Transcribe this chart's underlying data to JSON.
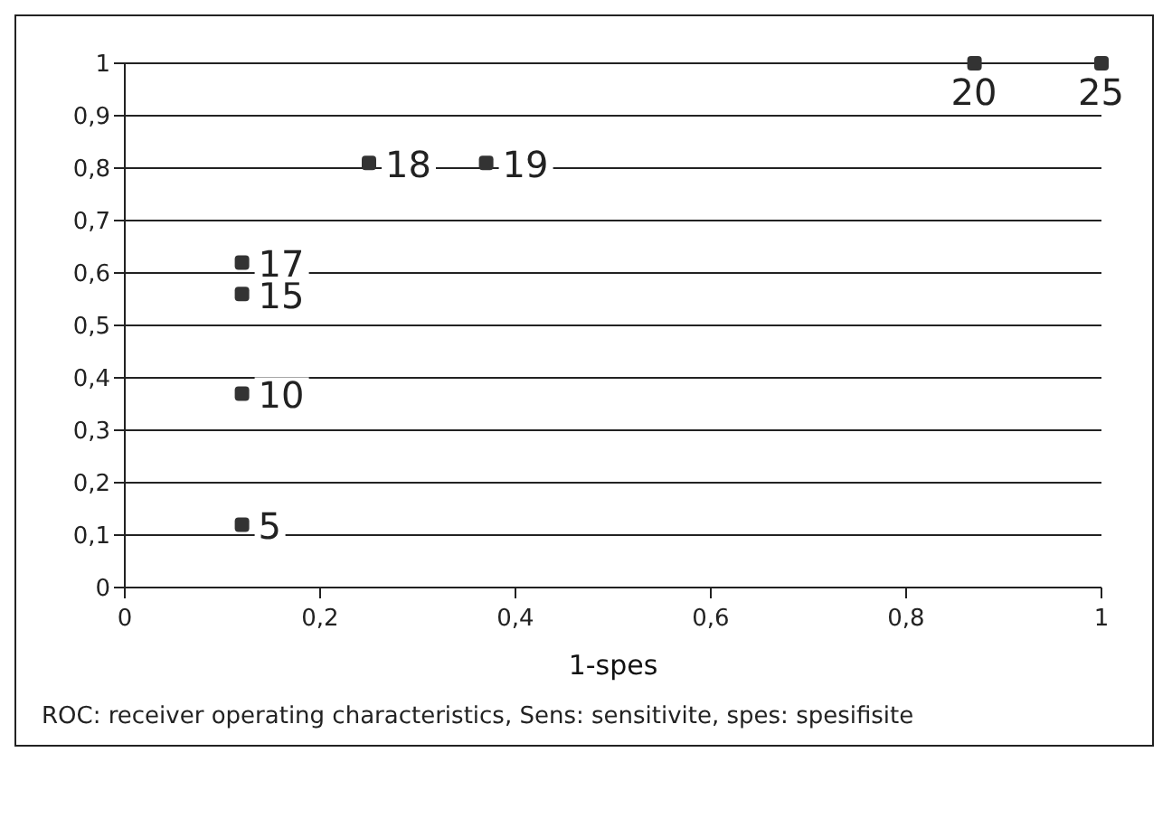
{
  "chart_data": {
    "type": "scatter",
    "xlabel": "1-spes",
    "x": [
      0.12,
      0.12,
      0.12,
      0.12,
      0.25,
      0.37,
      0.87,
      1
    ],
    "values": [
      0.12,
      0.37,
      0.56,
      0.62,
      0.81,
      0.81,
      1,
      1
    ],
    "color": "#333333",
    "marker": "square",
    "xlim": [
      0,
      1
    ],
    "xticks": [
      {
        "value": 0,
        "label": "0"
      },
      {
        "value": 0.2,
        "label": "0,2"
      },
      {
        "value": 0.4,
        "label": "0,4"
      },
      {
        "value": 0.6,
        "label": "0,6"
      },
      {
        "value": 0.8,
        "label": "0,8"
      },
      {
        "value": 1,
        "label": "1"
      }
    ],
    "ylim": [
      0,
      1
    ],
    "yticks": [
      {
        "value": 0,
        "label": "0"
      },
      {
        "value": 0.1,
        "label": "0,1"
      },
      {
        "value": 0.2,
        "label": "0,2"
      },
      {
        "value": 0.3,
        "label": "0,3"
      },
      {
        "value": 0.4,
        "label": "0,4"
      },
      {
        "value": 0.5,
        "label": "0,5"
      },
      {
        "value": 0.6,
        "label": "0,6"
      },
      {
        "value": 0.7,
        "label": "0,7"
      },
      {
        "value": 0.8,
        "label": "0,8"
      },
      {
        "value": 0.9,
        "label": "0,9"
      },
      {
        "value": 1,
        "label": "1"
      }
    ],
    "grid": "y",
    "annotations": [
      {
        "text": "5",
        "x": 0.12,
        "y": 0.12
      },
      {
        "text": "10",
        "x": 0.12,
        "y": 0.37
      },
      {
        "text": "15",
        "x": 0.12,
        "y": 0.56
      },
      {
        "text": "17",
        "x": 0.12,
        "y": 0.62
      },
      {
        "text": "18",
        "x": 0.25,
        "y": 0.81
      },
      {
        "text": "19",
        "x": 0.37,
        "y": 0.81
      },
      {
        "text": "20",
        "x": 0.87,
        "y": 1
      },
      {
        "text": "25",
        "x": 1,
        "y": 1
      },
      "ROC: receiver operating characteristics, Sens: sensitivite, spes: spesifisite"
    ]
  }
}
